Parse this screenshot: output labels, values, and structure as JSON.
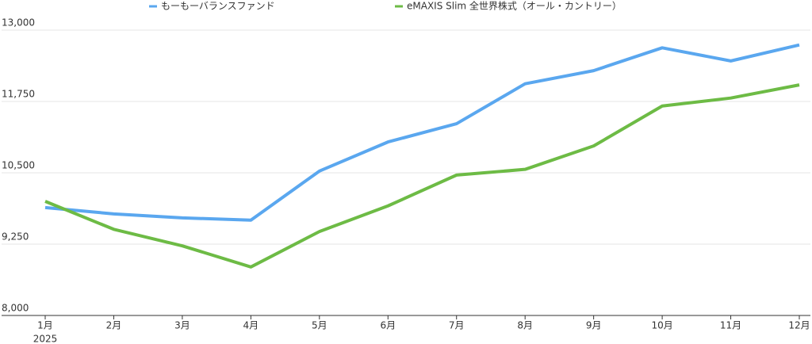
{
  "chart_data": {
    "type": "line",
    "categories": [
      "1月",
      "2月",
      "3月",
      "4月",
      "5月",
      "6月",
      "7月",
      "8月",
      "9月",
      "10月",
      "11月",
      "12月"
    ],
    "year_label": "2025",
    "series": [
      {
        "name": "もーもーバランスファンド",
        "color": "#5aa7ef",
        "values": [
          9890,
          9780,
          9710,
          9670,
          10530,
          11040,
          11360,
          12060,
          12290,
          12690,
          12460,
          12740
        ]
      },
      {
        "name": "eMAXIS Slim 全世界株式（オール・カントリー）",
        "color": "#6dbb45",
        "values": [
          10000,
          9510,
          9220,
          8850,
          9470,
          9920,
          10460,
          10560,
          10970,
          11670,
          11810,
          12040
        ]
      }
    ],
    "ylim": [
      8000,
      13000
    ],
    "yticks": [
      {
        "value": 8000,
        "label": "8,000"
      },
      {
        "value": 9250,
        "label": "9,250"
      },
      {
        "value": 10500,
        "label": "10,500"
      },
      {
        "value": 11750,
        "label": "11,750"
      },
      {
        "value": 13000,
        "label": "13,000"
      }
    ],
    "grid": true
  }
}
